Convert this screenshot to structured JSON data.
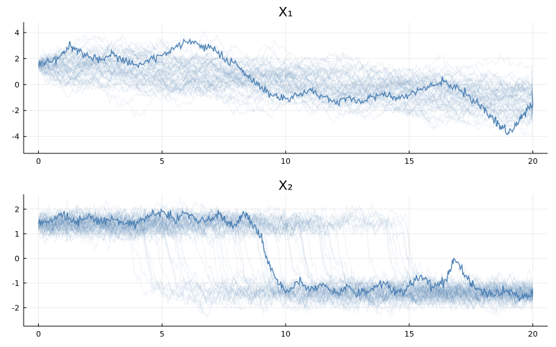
{
  "chart_data": [
    {
      "type": "line",
      "title": "X₁",
      "xlabel": "",
      "ylabel": "",
      "xlim": [
        -0.6,
        20.6
      ],
      "ylim": [
        -5.3,
        4.8
      ],
      "xticks": [
        0,
        5,
        10,
        15,
        20
      ],
      "yticks": [
        -4,
        -2,
        0,
        2,
        4
      ],
      "xtick_labels": [
        "0",
        "5",
        "10",
        "15",
        "20"
      ],
      "ytick_labels": [
        "-4",
        "-2",
        "0",
        "2",
        "4"
      ],
      "grid": true,
      "legend": "none",
      "color": "#4a7fb4",
      "faint_series_count": 60,
      "faint_series_opacity": 0.1,
      "start_value": 1.5,
      "end_value": -1.5,
      "highlighted_series": {
        "x": [
          0,
          0.5,
          1,
          1.3,
          1.6,
          2,
          2.5,
          3,
          3.5,
          4,
          4.5,
          5,
          5.5,
          6,
          6.5,
          7,
          7.5,
          8,
          8.5,
          9,
          9.5,
          10,
          10.5,
          11,
          11.5,
          12,
          12.5,
          13,
          13.5,
          14,
          14.5,
          15,
          15.5,
          16,
          16.5,
          17,
          17.5,
          18,
          18.3,
          18.6,
          19,
          19.3,
          19.6,
          20
        ],
        "y": [
          1.5,
          1.7,
          2.4,
          3.0,
          2.6,
          2.2,
          1.9,
          2.4,
          1.8,
          1.5,
          1.9,
          2.2,
          2.8,
          3.3,
          3.1,
          2.8,
          2.0,
          1.6,
          0.5,
          -0.3,
          -0.9,
          -1.1,
          -0.8,
          -0.3,
          -1.0,
          -1.4,
          -1.0,
          -1.3,
          -0.9,
          -0.6,
          -1.0,
          -0.8,
          -0.4,
          -0.1,
          0.3,
          -0.4,
          -1.3,
          -1.7,
          -2.5,
          -3.0,
          -3.7,
          -3.1,
          -2.3,
          -1.5
        ]
      }
    },
    {
      "type": "line",
      "title": "X₂",
      "xlabel": "",
      "ylabel": "",
      "xlim": [
        -0.6,
        20.6
      ],
      "ylim": [
        -2.75,
        2.6
      ],
      "xticks": [
        0,
        5,
        10,
        15,
        20
      ],
      "yticks": [
        -2,
        -1,
        0,
        1,
        2
      ],
      "xtick_labels": [
        "0",
        "5",
        "10",
        "15",
        "20"
      ],
      "ytick_labels": [
        "-2",
        "-1",
        "0",
        "1",
        "2"
      ],
      "grid": true,
      "legend": "none",
      "color": "#4a7fb4",
      "faint_series_count": 60,
      "faint_series_opacity": 0.1,
      "start_value": 1.4,
      "end_value": -1.4,
      "highlighted_series": {
        "x": [
          0,
          0.5,
          1,
          1.5,
          2,
          2.5,
          3,
          3.5,
          4,
          4.5,
          5,
          5.5,
          6,
          6.5,
          7,
          7.3,
          7.6,
          8,
          8.3,
          8.6,
          9,
          9.3,
          9.6,
          10,
          10.5,
          11,
          11.5,
          12,
          12.5,
          13,
          13.5,
          14,
          14.5,
          15,
          15.5,
          16,
          16.5,
          16.8,
          17.2,
          17.6,
          18,
          18.5,
          19,
          19.5,
          20
        ],
        "y": [
          1.4,
          1.6,
          1.8,
          1.5,
          1.7,
          1.5,
          1.6,
          1.4,
          1.5,
          1.7,
          1.9,
          1.6,
          1.8,
          1.5,
          1.6,
          1.8,
          1.5,
          1.3,
          1.9,
          1.5,
          0.9,
          -0.2,
          -0.8,
          -1.4,
          -1.0,
          -1.3,
          -1.0,
          -1.4,
          -1.1,
          -1.5,
          -1.2,
          -1.0,
          -1.4,
          -1.1,
          -0.7,
          -1.2,
          -0.9,
          0.0,
          -0.6,
          -1.1,
          -1.4,
          -1.5,
          -1.3,
          -1.6,
          -1.4
        ]
      }
    }
  ]
}
